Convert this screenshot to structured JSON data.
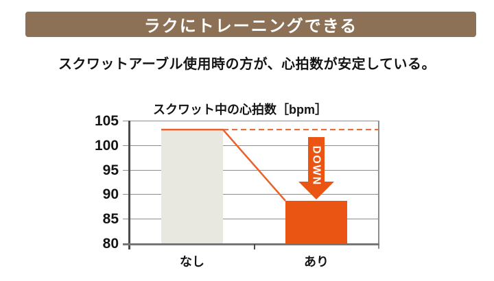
{
  "banner": {
    "title": "ラクにトレーニングできる",
    "bg_color": "#8c7156",
    "text_color": "#ffffff"
  },
  "subtitle": "スクワットアーブル使用時の方が、心拍数が安定している。",
  "chart_data": {
    "type": "bar",
    "title": "スクワット中の心拍数［bpm］",
    "categories": [
      "なし",
      "あり"
    ],
    "values": [
      103.3,
      88.8
    ],
    "ylim": [
      80,
      105
    ],
    "yticks": [
      105,
      100,
      95,
      90,
      85,
      80
    ],
    "xlabel": "",
    "ylabel": "",
    "grid": true,
    "legend": "none",
    "bar_colors": [
      "#e9e8e0",
      "#ea5513"
    ],
    "line_color": "#e9622b",
    "reference_line": {
      "style": "dashed",
      "value": 103.3,
      "color": "#e9622b"
    },
    "annotations": [
      {
        "type": "down-arrow",
        "label": "DOWN",
        "color": "#ea5513",
        "text_color": "#ffffff"
      }
    ]
  }
}
